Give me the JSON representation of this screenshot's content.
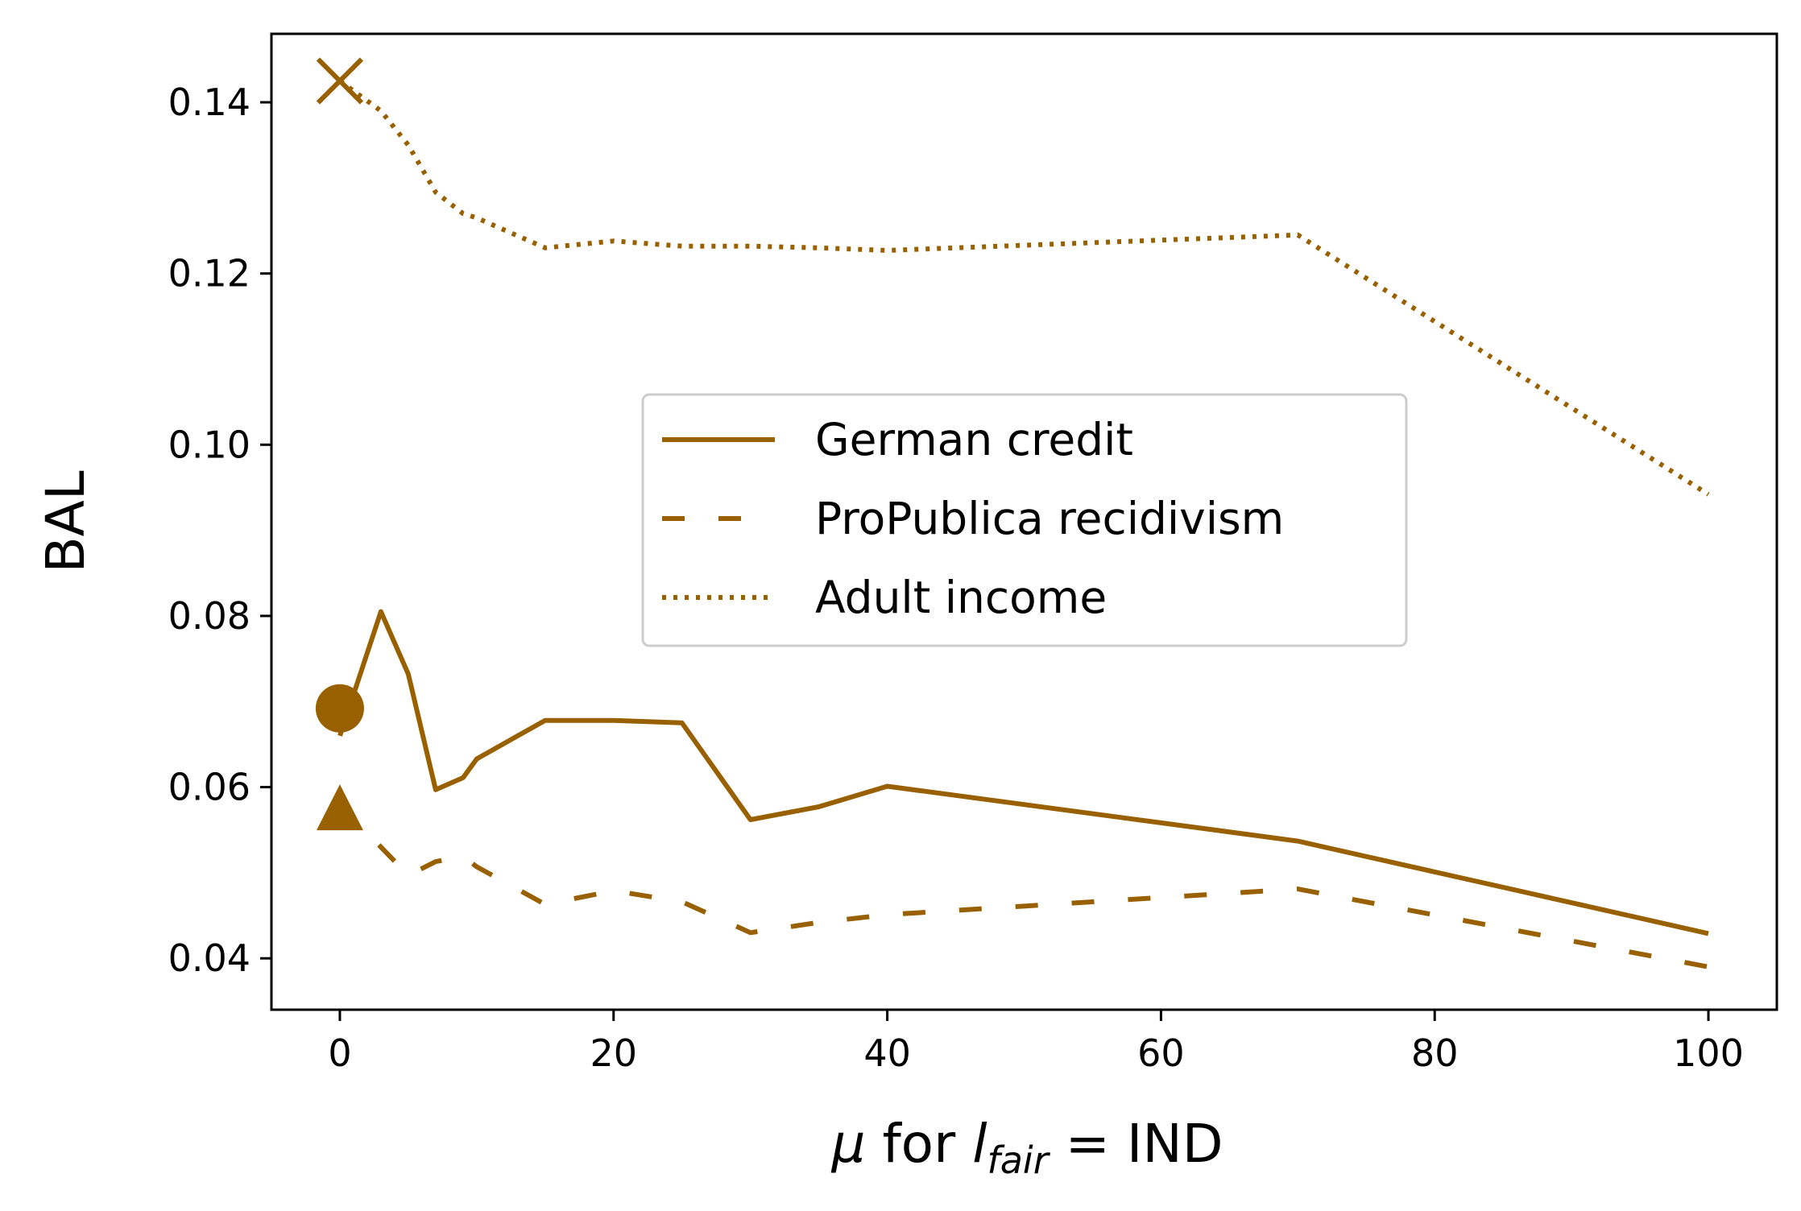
{
  "chart_data": {
    "type": "line",
    "xlabel": {
      "mu": "μ",
      "for": " for ",
      "l": "l",
      "sub": "fair",
      "rest": " = IND"
    },
    "ylabel": "BAL",
    "xlim": [
      -5,
      105
    ],
    "ylim": [
      0.034,
      0.148
    ],
    "xticks": [
      0,
      20,
      40,
      60,
      80,
      100
    ],
    "xtick_labels": [
      "0",
      "20",
      "40",
      "60",
      "80",
      "100"
    ],
    "yticks": [
      0.04,
      0.06,
      0.08,
      0.1,
      0.12,
      0.14
    ],
    "ytick_labels": [
      "0.04",
      "0.06",
      "0.08",
      "0.10",
      "0.12",
      "0.14"
    ],
    "grid": false,
    "legend_position": "center",
    "color": "#996000",
    "series": [
      {
        "name": "German credit",
        "style": "solid",
        "marker": "circle",
        "x": [
          0,
          3,
          5,
          7,
          9,
          10,
          15,
          20,
          25,
          30,
          35,
          40,
          70,
          100
        ],
        "y": [
          0.066,
          0.0805,
          0.0732,
          0.0597,
          0.0611,
          0.0633,
          0.0678,
          0.0678,
          0.0675,
          0.0562,
          0.0577,
          0.0601,
          0.0537,
          0.0429
        ]
      },
      {
        "name": "ProPublica recidivism",
        "style": "dashed",
        "marker": "triangle",
        "x": [
          0,
          3,
          5,
          7,
          9,
          10,
          15,
          20,
          25,
          30,
          35,
          40,
          70,
          100
        ],
        "y": [
          0.058,
          0.053,
          0.0497,
          0.0513,
          0.0519,
          0.0507,
          0.0463,
          0.0479,
          0.0466,
          0.043,
          0.0442,
          0.0451,
          0.0481,
          0.039
        ]
      },
      {
        "name": "Adult income",
        "style": "dotted",
        "marker": "x",
        "x": [
          0,
          3,
          5,
          7,
          9,
          10,
          15,
          20,
          25,
          30,
          35,
          40,
          70,
          100
        ],
        "y": [
          0.1425,
          0.139,
          0.135,
          0.1295,
          0.127,
          0.1265,
          0.123,
          0.1238,
          0.1232,
          0.1232,
          0.123,
          0.1227,
          0.1245,
          0.0942
        ]
      }
    ]
  }
}
